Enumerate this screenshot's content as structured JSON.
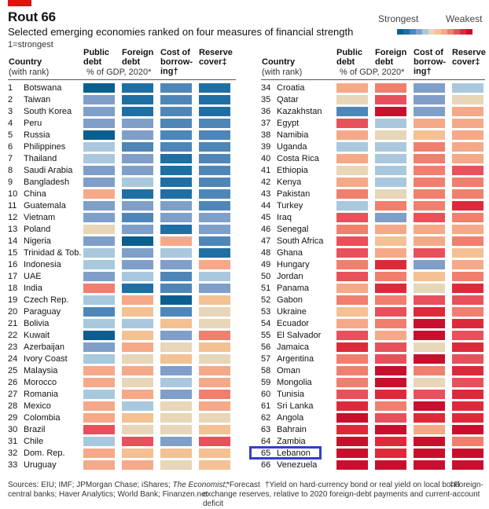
{
  "header": {
    "title": "Rout 66",
    "subtitle": "Selected emerging economies ranked on four measures of financial strength",
    "note": "1=strongest"
  },
  "legend": {
    "strongest": "Strongest",
    "weakest": "Weakest",
    "scale": [
      "#0b5f8f",
      "#1f6fa5",
      "#4f86b8",
      "#7f9fc8",
      "#a9c8de",
      "#e7d6b8",
      "#f3c193",
      "#f5a988",
      "#f07f6e",
      "#e8505b",
      "#dd2a3b",
      "#c8102e"
    ]
  },
  "columns": {
    "country": [
      "Country",
      "(with rank)"
    ],
    "public_debt": [
      "Public",
      "debt"
    ],
    "foreign_debt": [
      "Foreign",
      "debt"
    ],
    "cost": [
      "Cost of",
      "borrow-",
      "ing†"
    ],
    "reserve": [
      "Reserve",
      "cover‡"
    ],
    "unit": "% of GDP, 2020*"
  },
  "footer": {
    "sources_a": "Sources: EIU; IMF; JPMorgan Chase; iShares; ",
    "sources_econ": "The Economist",
    "sources_b": ";",
    "sources_c": "central banks; Haver Analytics; World Bank; Finanzen.net",
    "forecast": "*Forecast",
    "dagger": "†Yield on hard-currency bond or real yield on local bond",
    "ddagger_a": "‡Foreign-",
    "ddagger_b": "exchange reserves, relative to 2020 foreign-debt payments and current-account deficit"
  },
  "chart_data": {
    "type": "table",
    "title": "Rout 66",
    "subtitle": "Selected emerging economies ranked on four measures of financial strength",
    "measures": [
      "Public debt",
      "Foreign debt",
      "Cost of borrowing",
      "Reserve cover"
    ],
    "color_scale_note": "Values are colour classes 1 (strongest, dark blue) to 12 (weakest, red)",
    "highlighted_rank": 65,
    "rows": [
      {
        "rank": 1,
        "country": "Botswana",
        "public_debt": 1,
        "foreign_debt": 2,
        "cost": 3,
        "reserve": 2
      },
      {
        "rank": 2,
        "country": "Taiwan",
        "public_debt": 4,
        "foreign_debt": 2,
        "cost": 3,
        "reserve": 2
      },
      {
        "rank": 3,
        "country": "South Korea",
        "public_debt": 4,
        "foreign_debt": 2,
        "cost": 3,
        "reserve": 2
      },
      {
        "rank": 4,
        "country": "Peru",
        "public_debt": 4,
        "foreign_debt": 4,
        "cost": 3,
        "reserve": 3
      },
      {
        "rank": 5,
        "country": "Russia",
        "public_debt": 1,
        "foreign_debt": 4,
        "cost": 3,
        "reserve": 3
      },
      {
        "rank": 6,
        "country": "Philippines",
        "public_debt": 5,
        "foreign_debt": 3,
        "cost": 3,
        "reserve": 3
      },
      {
        "rank": 7,
        "country": "Thailand",
        "public_debt": 5,
        "foreign_debt": 4,
        "cost": 2,
        "reserve": 3
      },
      {
        "rank": 8,
        "country": "Saudi Arabia",
        "public_debt": 4,
        "foreign_debt": 4,
        "cost": 2,
        "reserve": 3
      },
      {
        "rank": 9,
        "country": "Bangladesh",
        "public_debt": 4,
        "foreign_debt": 5,
        "cost": 2,
        "reserve": 3
      },
      {
        "rank": 10,
        "country": "China",
        "public_debt": 8,
        "foreign_debt": 2,
        "cost": 2,
        "reserve": 3
      },
      {
        "rank": 11,
        "country": "Guatemala",
        "public_debt": 4,
        "foreign_debt": 4,
        "cost": 4,
        "reserve": 3
      },
      {
        "rank": 12,
        "country": "Vietnam",
        "public_debt": 4,
        "foreign_debt": 3,
        "cost": 4,
        "reserve": 4
      },
      {
        "rank": 13,
        "country": "Poland",
        "public_debt": 6,
        "foreign_debt": 4,
        "cost": 2,
        "reserve": 4
      },
      {
        "rank": 14,
        "country": "Nigeria",
        "public_debt": 4,
        "foreign_debt": 1,
        "cost": 8,
        "reserve": 3
      },
      {
        "rank": 15,
        "country": "Trinidad & Tob.",
        "public_debt": 5,
        "foreign_debt": 4,
        "cost": 5,
        "reserve": 2
      },
      {
        "rank": 16,
        "country": "Indonesia",
        "public_debt": 5,
        "foreign_debt": 4,
        "cost": 4,
        "reserve": 8
      },
      {
        "rank": 17,
        "country": "UAE",
        "public_debt": 4,
        "foreign_debt": 5,
        "cost": 3,
        "reserve": 5
      },
      {
        "rank": 18,
        "country": "India",
        "public_debt": 9,
        "foreign_debt": 2,
        "cost": 3,
        "reserve": 4
      },
      {
        "rank": 19,
        "country": "Czech Rep.",
        "public_debt": 5,
        "foreign_debt": 8,
        "cost": 1,
        "reserve": 7
      },
      {
        "rank": 20,
        "country": "Paraguay",
        "public_debt": 3,
        "foreign_debt": 7,
        "cost": 3,
        "reserve": 6
      },
      {
        "rank": 21,
        "country": "Bolivia",
        "public_debt": 5,
        "foreign_debt": 5,
        "cost": 7,
        "reserve": 6
      },
      {
        "rank": 22,
        "country": "Kuwait",
        "public_debt": 1,
        "foreign_debt": 7,
        "cost": 4,
        "reserve": 9
      },
      {
        "rank": 23,
        "country": "Azerbaijan",
        "public_debt": 4,
        "foreign_debt": 8,
        "cost": 6,
        "reserve": 7
      },
      {
        "rank": 24,
        "country": "Ivory Coast",
        "public_debt": 5,
        "foreign_debt": 6,
        "cost": 7,
        "reserve": 6
      },
      {
        "rank": 25,
        "country": "Malaysia",
        "public_debt": 8,
        "foreign_debt": 8,
        "cost": 4,
        "reserve": 8
      },
      {
        "rank": 26,
        "country": "Morocco",
        "public_debt": 8,
        "foreign_debt": 6,
        "cost": 5,
        "reserve": 8
      },
      {
        "rank": 27,
        "country": "Romania",
        "public_debt": 5,
        "foreign_debt": 8,
        "cost": 4,
        "reserve": 9
      },
      {
        "rank": 28,
        "country": "Mexico",
        "public_debt": 8,
        "foreign_debt": 5,
        "cost": 6,
        "reserve": 8
      },
      {
        "rank": 29,
        "country": "Colombia",
        "public_debt": 8,
        "foreign_debt": 7,
        "cost": 6,
        "reserve": 6
      },
      {
        "rank": 30,
        "country": "Brazil",
        "public_debt": 10,
        "foreign_debt": 6,
        "cost": 6,
        "reserve": 7
      },
      {
        "rank": 31,
        "country": "Chile",
        "public_debt": 5,
        "foreign_debt": 10,
        "cost": 4,
        "reserve": 10
      },
      {
        "rank": 32,
        "country": "Dom. Rep.",
        "public_debt": 8,
        "foreign_debt": 7,
        "cost": 7,
        "reserve": 7
      },
      {
        "rank": 33,
        "country": "Uruguay",
        "public_debt": 8,
        "foreign_debt": 8,
        "cost": 6,
        "reserve": 7
      },
      {
        "rank": 34,
        "country": "Croatia",
        "public_debt": 8,
        "foreign_debt": 9,
        "cost": 4,
        "reserve": 5
      },
      {
        "rank": 35,
        "country": "Qatar",
        "public_debt": 6,
        "foreign_debt": 10,
        "cost": 4,
        "reserve": 6
      },
      {
        "rank": 36,
        "country": "Kazakhstan",
        "public_debt": 3,
        "foreign_debt": 12,
        "cost": 4,
        "reserve": 8
      },
      {
        "rank": 37,
        "country": "Egypt",
        "public_debt": 10,
        "foreign_debt": 5,
        "cost": 8,
        "reserve": 8
      },
      {
        "rank": 38,
        "country": "Namibia",
        "public_debt": 8,
        "foreign_debt": 6,
        "cost": 7,
        "reserve": 8
      },
      {
        "rank": 39,
        "country": "Uganda",
        "public_debt": 5,
        "foreign_debt": 5,
        "cost": 9,
        "reserve": 8
      },
      {
        "rank": 40,
        "country": "Costa Rica",
        "public_debt": 8,
        "foreign_debt": 5,
        "cost": 9,
        "reserve": 8
      },
      {
        "rank": 41,
        "country": "Ethiopia",
        "public_debt": 6,
        "foreign_debt": 5,
        "cost": 9,
        "reserve": 10
      },
      {
        "rank": 42,
        "country": "Kenya",
        "public_debt": 8,
        "foreign_debt": 5,
        "cost": 9,
        "reserve": 9
      },
      {
        "rank": 43,
        "country": "Pakistan",
        "public_debt": 9,
        "foreign_debt": 6,
        "cost": 9,
        "reserve": 9
      },
      {
        "rank": 44,
        "country": "Turkey",
        "public_debt": 5,
        "foreign_debt": 9,
        "cost": 9,
        "reserve": 11
      },
      {
        "rank": 45,
        "country": "Iraq",
        "public_debt": 10,
        "foreign_debt": 4,
        "cost": 10,
        "reserve": 9
      },
      {
        "rank": 46,
        "country": "Senegal",
        "public_debt": 9,
        "foreign_debt": 8,
        "cost": 8,
        "reserve": 8
      },
      {
        "rank": 47,
        "country": "South Africa",
        "public_debt": 10,
        "foreign_debt": 7,
        "cost": 8,
        "reserve": 9
      },
      {
        "rank": 48,
        "country": "Ghana",
        "public_debt": 10,
        "foreign_debt": 8,
        "cost": 10,
        "reserve": 7
      },
      {
        "rank": 49,
        "country": "Hungary",
        "public_debt": 9,
        "foreign_debt": 11,
        "cost": 4,
        "reserve": 8
      },
      {
        "rank": 50,
        "country": "Jordan",
        "public_debt": 10,
        "foreign_debt": 9,
        "cost": 7,
        "reserve": 9
      },
      {
        "rank": 51,
        "country": "Panama",
        "public_debt": 8,
        "foreign_debt": 11,
        "cost": 6,
        "reserve": 11
      },
      {
        "rank": 52,
        "country": "Gabon",
        "public_debt": 9,
        "foreign_debt": 9,
        "cost": 10,
        "reserve": 10
      },
      {
        "rank": 53,
        "country": "Ukraine",
        "public_debt": 7,
        "foreign_debt": 10,
        "cost": 11,
        "reserve": 9
      },
      {
        "rank": 54,
        "country": "Ecuador",
        "public_debt": 8,
        "foreign_debt": 9,
        "cost": 12,
        "reserve": 11
      },
      {
        "rank": 55,
        "country": "El Salvador",
        "public_debt": 10,
        "foreign_debt": 8,
        "cost": 12,
        "reserve": 10
      },
      {
        "rank": 56,
        "country": "Jamaica",
        "public_debt": 11,
        "foreign_debt": 10,
        "cost": 6,
        "reserve": 11
      },
      {
        "rank": 57,
        "country": "Argentina",
        "public_debt": 9,
        "foreign_debt": 10,
        "cost": 12,
        "reserve": 10
      },
      {
        "rank": 58,
        "country": "Oman",
        "public_debt": 9,
        "foreign_debt": 12,
        "cost": 9,
        "reserve": 11
      },
      {
        "rank": 59,
        "country": "Mongolia",
        "public_debt": 9,
        "foreign_debt": 12,
        "cost": 6,
        "reserve": 10
      },
      {
        "rank": 60,
        "country": "Tunisia",
        "public_debt": 10,
        "foreign_debt": 11,
        "cost": 10,
        "reserve": 11
      },
      {
        "rank": 61,
        "country": "Sri Lanka",
        "public_debt": 11,
        "foreign_debt": 9,
        "cost": 12,
        "reserve": 11
      },
      {
        "rank": 62,
        "country": "Angola",
        "public_debt": 12,
        "foreign_debt": 10,
        "cost": 11,
        "reserve": 11
      },
      {
        "rank": 63,
        "country": "Bahrain",
        "public_debt": 11,
        "foreign_debt": 12,
        "cost": 8,
        "reserve": 12
      },
      {
        "rank": 64,
        "country": "Zambia",
        "public_debt": 12,
        "foreign_debt": 11,
        "cost": 12,
        "reserve": 9
      },
      {
        "rank": 65,
        "country": "Lebanon",
        "public_debt": 12,
        "foreign_debt": 11,
        "cost": 12,
        "reserve": 12
      },
      {
        "rank": 66,
        "country": "Venezuela",
        "public_debt": 12,
        "foreign_debt": 12,
        "cost": 12,
        "reserve": 12
      }
    ]
  }
}
